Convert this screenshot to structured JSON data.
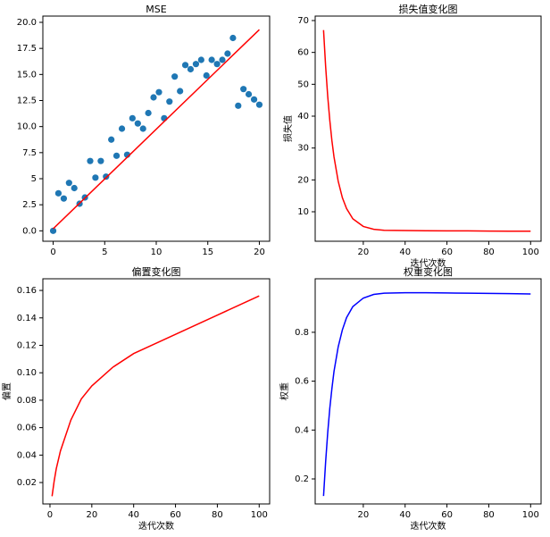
{
  "chart_data": [
    {
      "type": "scatter",
      "title": "MSE",
      "x": [
        0,
        0.51,
        1.03,
        1.54,
        2.05,
        2.56,
        3.08,
        3.59,
        4.1,
        4.62,
        5.13,
        5.64,
        6.15,
        6.67,
        7.18,
        7.69,
        8.21,
        8.72,
        9.23,
        9.74,
        10.26,
        10.77,
        11.28,
        11.79,
        12.31,
        12.82,
        13.33,
        13.85,
        14.36,
        14.87,
        15.38,
        15.9,
        16.41,
        16.92,
        17.44,
        17.95,
        18.46,
        18.97,
        19.49,
        20
      ],
      "values": [
        0.0,
        3.6,
        3.1,
        4.6,
        4.1,
        2.6,
        3.2,
        6.7,
        5.1,
        6.7,
        5.2,
        8.75,
        7.2,
        9.8,
        7.3,
        10.8,
        10.3,
        9.8,
        11.3,
        12.8,
        13.3,
        10.8,
        12.4,
        14.8,
        13.4,
        15.9,
        15.5,
        16.0,
        16.4,
        14.9,
        16.4,
        16.0,
        16.4,
        17.0,
        18.5,
        12.0,
        13.6,
        13.1,
        12.6,
        12.1
      ],
      "color": "#1f77b4",
      "fit_line": {
        "x": [
          0,
          20
        ],
        "values": [
          0.2,
          19.3
        ],
        "color": "red"
      },
      "xlim": [
        -1,
        21
      ],
      "ylim": [
        -1.0,
        20.6
      ],
      "xticks": [
        0,
        5,
        10,
        15,
        20
      ],
      "yticks": [
        {
          "value": 0,
          "label": "0.0"
        },
        2.5,
        5.0,
        7.5,
        {
          "value": 10,
          "label": "10.0"
        },
        12.5,
        {
          "value": 15,
          "label": "15.0"
        },
        17.5,
        {
          "value": 20,
          "label": "20.0"
        }
      ]
    },
    {
      "type": "line",
      "title": "损失值变化图",
      "xlabel": "迭代次数",
      "ylabel": "损失值",
      "color": "red",
      "x": [
        1,
        2,
        3,
        4,
        5,
        6,
        8,
        10,
        12,
        15,
        20,
        25,
        30,
        40,
        50,
        60,
        70,
        80,
        90,
        100
      ],
      "values": [
        67,
        55.6,
        46.2,
        38.6,
        32.3,
        27.2,
        19.6,
        14.4,
        11.0,
        7.8,
        5.4,
        4.5,
        4.2,
        4.1,
        4.05,
        4.0,
        4.0,
        3.95,
        3.9,
        3.9
      ],
      "xlim": [
        -3,
        105
      ],
      "ylim": [
        0.75,
        71.4
      ],
      "xticks": [
        20,
        40,
        60,
        80,
        100
      ],
      "yticks": [
        10,
        20,
        30,
        40,
        50,
        60,
        70
      ]
    },
    {
      "type": "line",
      "title": "偏置变化图",
      "xlabel": "迭代次数",
      "ylabel": "偏置",
      "color": "red",
      "x": [
        1,
        2,
        3,
        5,
        10,
        15,
        20,
        30,
        40,
        60,
        80,
        100
      ],
      "values": [
        0.01,
        0.021,
        0.03,
        0.043,
        0.0656,
        0.081,
        0.0904,
        0.104,
        0.114,
        0.128,
        0.142,
        0.156
      ],
      "xlim": [
        -3.4,
        105
      ],
      "ylim": [
        0.0044,
        0.1685
      ],
      "xticks": [
        0,
        20,
        40,
        60,
        80,
        100
      ],
      "yticks": [
        0.02,
        0.04,
        0.06,
        0.08,
        {
          "value": 0.1,
          "label": "0.10"
        },
        0.12,
        0.14,
        0.16
      ]
    },
    {
      "type": "line",
      "title": "权重变化图",
      "xlabel": "迭代次数",
      "ylabel": "权重",
      "color": "blue",
      "x": [
        1,
        2,
        3,
        4,
        5,
        6,
        8,
        10,
        12,
        15,
        20,
        25,
        30,
        40,
        50,
        60,
        70,
        80,
        90,
        100
      ],
      "values": [
        0.13,
        0.27,
        0.39,
        0.49,
        0.57,
        0.64,
        0.74,
        0.81,
        0.86,
        0.905,
        0.94,
        0.955,
        0.96,
        0.962,
        0.962,
        0.961,
        0.96,
        0.959,
        0.958,
        0.957
      ],
      "xlim": [
        -3,
        105
      ],
      "ylim": [
        0.0976,
        1.019
      ],
      "xticks": [
        20,
        40,
        60,
        80,
        100
      ],
      "yticks": [
        0.2,
        0.4,
        0.6,
        0.8
      ]
    }
  ]
}
